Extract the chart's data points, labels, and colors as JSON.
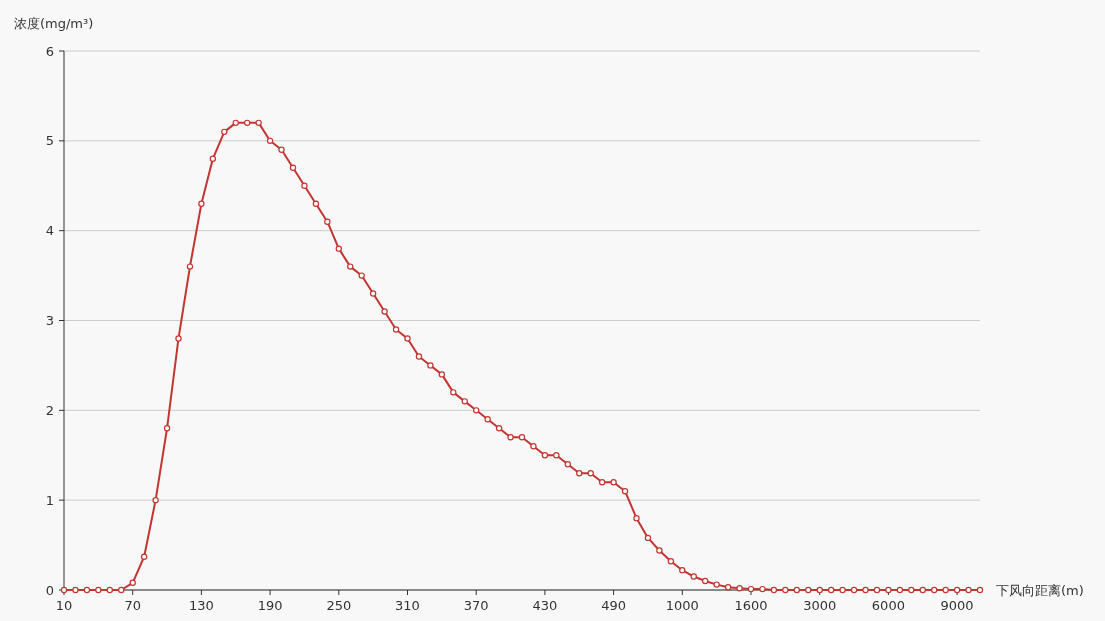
{
  "chart_data": {
    "type": "line",
    "ylabel": "浓度(mg/m³)",
    "xlabel": "下风向距离(m)",
    "categories": [
      "10",
      null,
      null,
      null,
      null,
      null,
      "70",
      null,
      null,
      null,
      null,
      null,
      "130",
      null,
      null,
      null,
      null,
      null,
      "190",
      null,
      null,
      null,
      null,
      null,
      "250",
      null,
      null,
      null,
      null,
      null,
      "310",
      null,
      null,
      null,
      null,
      null,
      "370",
      null,
      null,
      null,
      null,
      null,
      "430",
      null,
      null,
      null,
      null,
      null,
      "490",
      null,
      null,
      null,
      null,
      null,
      "1000",
      null,
      null,
      null,
      null,
      null,
      "1600",
      null,
      null,
      null,
      null,
      null,
      "3000",
      null,
      null,
      null,
      null,
      null,
      "6000",
      null,
      null,
      null,
      null,
      null,
      "9000",
      null,
      null
    ],
    "series": [
      {
        "color": "#c23531",
        "values": [
          0,
          0,
          0,
          0,
          0,
          0,
          0.08,
          0.37,
          1.0,
          1.8,
          2.8,
          3.6,
          4.3,
          4.8,
          5.1,
          5.2,
          5.2,
          5.2,
          5.0,
          4.9,
          4.7,
          4.5,
          4.3,
          4.1,
          3.8,
          3.6,
          3.5,
          3.3,
          3.1,
          2.9,
          2.8,
          2.6,
          2.5,
          2.4,
          2.2,
          2.1,
          2.0,
          1.9,
          1.8,
          1.7,
          1.7,
          1.6,
          1.5,
          1.5,
          1.4,
          1.3,
          1.3,
          1.2,
          1.2,
          1.1,
          0.8,
          0.58,
          0.44,
          0.32,
          0.22,
          0.15,
          0.1,
          0.06,
          0.03,
          0.02,
          0.01,
          0.01,
          0,
          0,
          0,
          0,
          0,
          0,
          0,
          0,
          0,
          0,
          0,
          0,
          0,
          0,
          0,
          0,
          0,
          0,
          0
        ]
      }
    ],
    "ylim": [
      0,
      6
    ],
    "yticks": [
      0,
      1,
      2,
      3,
      4,
      5,
      6
    ],
    "grid": "y",
    "marker": "circle",
    "line_style": "solid"
  }
}
